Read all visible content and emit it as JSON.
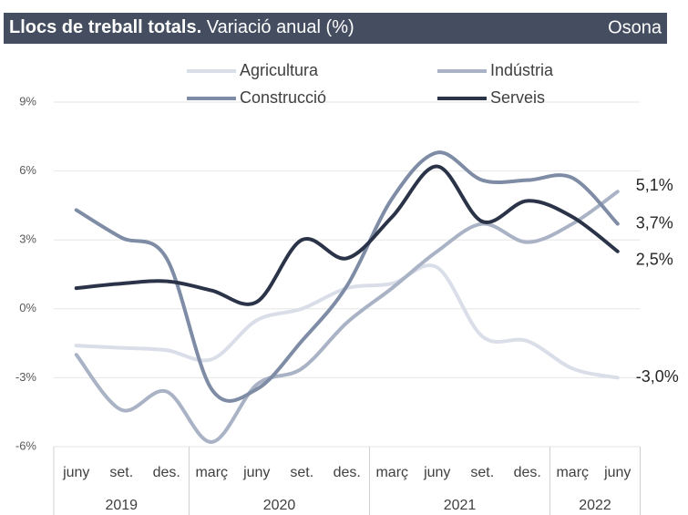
{
  "chart_data": {
    "type": "line",
    "title": "Llocs de treball totals.",
    "subtitle": "Variació anual (%)",
    "region": "Osona",
    "categories": [
      "juny",
      "set.",
      "des.",
      "març",
      "juny",
      "set.",
      "des.",
      "març",
      "juny",
      "set.",
      "des.",
      "març",
      "juny"
    ],
    "years": [
      "2019",
      null,
      null,
      "2020",
      null,
      null,
      null,
      "2021",
      null,
      null,
      null,
      "2022",
      null
    ],
    "ylim": [
      -6,
      9
    ],
    "yticks": [
      {
        "value": -6,
        "label": "-6%"
      },
      {
        "value": -3,
        "label": "-3%"
      },
      {
        "value": 0,
        "label": "0%"
      },
      {
        "value": 3,
        "label": "3%"
      },
      {
        "value": 6,
        "label": "6%"
      },
      {
        "value": 9,
        "label": "9%"
      }
    ],
    "grid": true,
    "legend": "top",
    "series": [
      {
        "name": "Agricultura",
        "color": "#d9dee8",
        "values": [
          -1.6,
          -1.7,
          -1.8,
          -2.2,
          -0.5,
          0.0,
          0.9,
          1.1,
          1.8,
          -1.2,
          -1.4,
          -2.6,
          -3.0
        ],
        "value_labels": [
          null,
          null,
          null,
          null,
          null,
          null,
          null,
          null,
          null,
          null,
          null,
          null,
          "-3,0%"
        ]
      },
      {
        "name": "Indústria",
        "color": "#aab3c5",
        "values": [
          -2.0,
          -4.4,
          -3.6,
          -5.8,
          -3.3,
          -2.6,
          -0.6,
          0.9,
          2.5,
          3.7,
          2.9,
          3.7,
          5.1
        ],
        "value_labels": [
          null,
          null,
          null,
          null,
          null,
          null,
          null,
          null,
          null,
          null,
          null,
          null,
          "5,1%"
        ]
      },
      {
        "name": "Construcció",
        "color": "#7f8ca6",
        "values": [
          4.3,
          3.1,
          2.2,
          -3.5,
          -3.5,
          -1.4,
          1.0,
          4.8,
          6.8,
          5.6,
          5.6,
          5.7,
          3.7
        ],
        "value_labels": [
          null,
          null,
          null,
          null,
          null,
          null,
          null,
          null,
          null,
          null,
          null,
          null,
          "3,7%"
        ]
      },
      {
        "name": "Serveis",
        "color": "#2a3347",
        "values": [
          0.9,
          1.1,
          1.2,
          0.8,
          0.3,
          3.0,
          2.2,
          4.0,
          6.2,
          3.8,
          4.7,
          4.0,
          2.5
        ],
        "value_labels": [
          null,
          null,
          null,
          null,
          null,
          null,
          null,
          null,
          null,
          null,
          null,
          null,
          "2,5%"
        ]
      }
    ]
  }
}
